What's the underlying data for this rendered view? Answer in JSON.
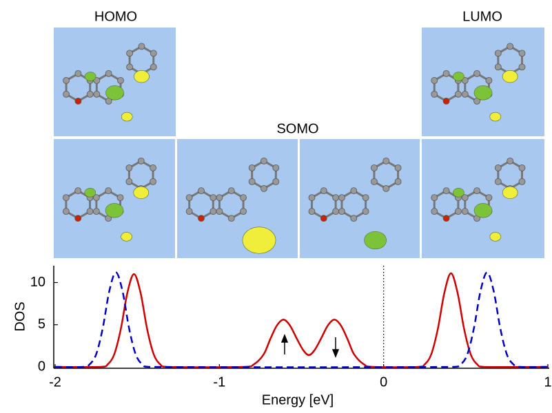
{
  "chart_data": {
    "type": "line",
    "annotations": [
      "HOMO",
      "SOMO",
      "LUMO"
    ],
    "xlabel": "Energy [eV]",
    "ylabel": "DOS",
    "xlim": [
      -2,
      1
    ],
    "ylim": [
      0,
      12
    ],
    "xticks": [
      -2,
      -1,
      0,
      1
    ],
    "yticks": [
      0,
      5,
      10
    ],
    "vline": 0,
    "series": [
      {
        "color": "#d40000",
        "dashed": false,
        "x": [
          -2,
          -1.72,
          -1.68,
          -1.64,
          -1.6,
          -1.56,
          -1.52,
          -1.48,
          -1.44,
          -1.4,
          -1.36,
          -1.32,
          -0.85,
          -0.79,
          -0.73,
          -0.69,
          -0.65,
          -0.61,
          -0.57,
          -0.53,
          -0.49,
          -0.455,
          -0.42,
          -0.38,
          -0.34,
          -0.3,
          -0.26,
          -0.22,
          -0.18,
          -0.12,
          -0.06,
          0.21,
          0.25,
          0.29,
          0.33,
          0.37,
          0.41,
          0.45,
          0.49,
          0.53,
          0.57,
          0.61,
          1
        ],
        "values": [
          0,
          0,
          0.3,
          1.5,
          4.5,
          8.8,
          11,
          8.8,
          4.5,
          1.5,
          0.3,
          0,
          0,
          0.3,
          1.5,
          3.3,
          4.9,
          5.6,
          4.9,
          3.4,
          2.0,
          1.4,
          2.0,
          3.4,
          4.9,
          5.6,
          4.9,
          3.3,
          1.5,
          0.3,
          0,
          0,
          0.3,
          1.5,
          4.5,
          8.8,
          11.1,
          8.8,
          4.5,
          1.5,
          0.3,
          0,
          0
        ]
      },
      {
        "color": "#0000cc",
        "dashed": true,
        "x": [
          -2,
          -1.83,
          -1.79,
          -1.75,
          -1.71,
          -1.67,
          -1.63,
          -1.59,
          -1.55,
          -1.51,
          -1.47,
          -1.43,
          0.43,
          0.47,
          0.51,
          0.55,
          0.59,
          0.63,
          0.67,
          0.71,
          0.75,
          0.79,
          0.83,
          1
        ],
        "values": [
          0,
          0,
          0.3,
          1.5,
          4.6,
          9,
          11.2,
          9,
          4.6,
          1.5,
          0.3,
          0,
          0,
          0.3,
          1.5,
          4.6,
          9,
          11.2,
          9,
          4.6,
          1.5,
          0.3,
          0,
          0
        ]
      }
    ]
  }
}
